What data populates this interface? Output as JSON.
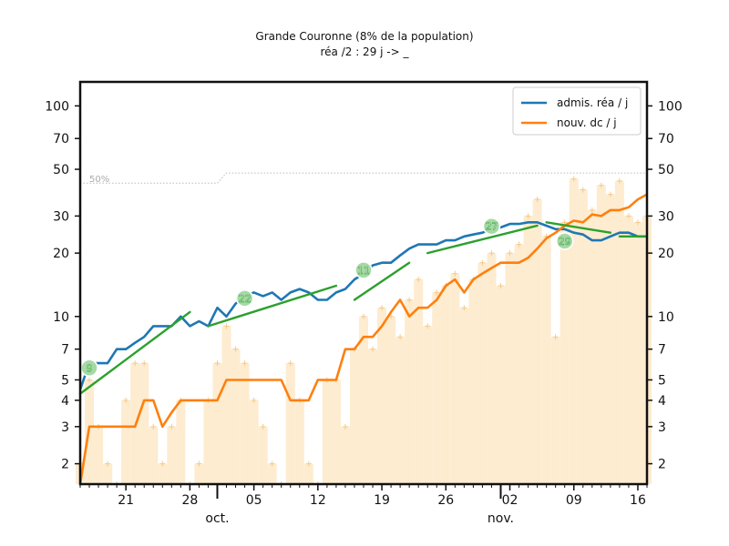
{
  "chart_data": {
    "type": "line",
    "title": "Grande Couronne (8% de la population)",
    "subtitle": "réa /2 : 29 j -> _",
    "y_scale": "log",
    "ylim": [
      1.6,
      130
    ],
    "y_ticks": [
      {
        "value": 2,
        "label": "2"
      },
      {
        "value": 3,
        "label": "3"
      },
      {
        "value": 4,
        "label": "4"
      },
      {
        "value": 5,
        "label": "5"
      },
      {
        "value": 7,
        "label": "7"
      },
      {
        "value": 10,
        "label": "10"
      },
      {
        "value": 20,
        "label": "20"
      },
      {
        "value": 30,
        "label": "30"
      },
      {
        "value": 50,
        "label": "50"
      },
      {
        "value": 70,
        "label": "70"
      },
      {
        "value": 100,
        "label": "100"
      }
    ],
    "x_range": [
      "2020-09-16",
      "2020-11-17"
    ],
    "x_ticks": [
      {
        "date": "2020-09-21",
        "label": "21"
      },
      {
        "date": "2020-09-28",
        "label": "28"
      },
      {
        "date": "2020-10-05",
        "label": "05"
      },
      {
        "date": "2020-10-12",
        "label": "12"
      },
      {
        "date": "2020-10-19",
        "label": "19"
      },
      {
        "date": "2020-10-26",
        "label": "26"
      },
      {
        "date": "2020-11-02",
        "label": "02"
      },
      {
        "date": "2020-11-09",
        "label": "09"
      },
      {
        "date": "2020-11-16",
        "label": "16"
      }
    ],
    "month_labels": [
      {
        "date": "2020-10-01",
        "label": "oct."
      },
      {
        "date": "2020-11-01",
        "label": "nov."
      }
    ],
    "legend": {
      "position": "top-right"
    },
    "annotation_50": {
      "label": "50%"
    },
    "reference_line": [
      {
        "date": "2020-09-16",
        "value": 43
      },
      {
        "date": "2020-10-01",
        "value": 43
      },
      {
        "date": "2020-10-02",
        "value": 48
      },
      {
        "date": "2020-11-17",
        "value": 48
      }
    ],
    "series": [
      {
        "name": "admis. réa / j",
        "color": "#1f77b4",
        "dates": [
          "2020-09-16",
          "2020-09-17",
          "2020-09-18",
          "2020-09-19",
          "2020-09-20",
          "2020-09-21",
          "2020-09-22",
          "2020-09-23",
          "2020-09-24",
          "2020-09-25",
          "2020-09-26",
          "2020-09-27",
          "2020-09-28",
          "2020-09-29",
          "2020-09-30",
          "2020-10-01",
          "2020-10-02",
          "2020-10-03",
          "2020-10-04",
          "2020-10-05",
          "2020-10-06",
          "2020-10-07",
          "2020-10-08",
          "2020-10-09",
          "2020-10-10",
          "2020-10-11",
          "2020-10-12",
          "2020-10-13",
          "2020-10-14",
          "2020-10-15",
          "2020-10-16",
          "2020-10-17",
          "2020-10-18",
          "2020-10-19",
          "2020-10-20",
          "2020-10-21",
          "2020-10-22",
          "2020-10-23",
          "2020-10-24",
          "2020-10-25",
          "2020-10-26",
          "2020-10-27",
          "2020-10-28",
          "2020-10-29",
          "2020-10-30",
          "2020-10-31",
          "2020-11-01",
          "2020-11-02",
          "2020-11-03",
          "2020-11-04",
          "2020-11-05",
          "2020-11-06",
          "2020-11-07",
          "2020-11-08",
          "2020-11-09",
          "2020-11-10",
          "2020-11-11",
          "2020-11-12",
          "2020-11-13",
          "2020-11-14",
          "2020-11-15",
          "2020-11-16",
          "2020-11-17"
        ],
        "values": [
          4.5,
          6,
          6,
          6,
          7,
          7,
          7.5,
          8,
          9,
          9,
          9,
          10,
          9,
          9.5,
          9,
          11,
          10,
          11.5,
          12.5,
          13,
          12.5,
          13,
          12,
          13,
          13.5,
          13,
          12,
          12,
          13,
          13.5,
          15,
          16,
          17.5,
          18,
          18,
          19.5,
          21,
          22,
          22,
          22,
          23,
          23,
          24,
          24.5,
          25,
          26,
          26.5,
          27.5,
          27.5,
          28,
          28,
          27,
          26,
          26,
          25,
          24.5,
          23,
          23,
          24,
          25,
          25,
          24,
          24
        ]
      },
      {
        "name": "nouv. dc / j",
        "color": "#ff7f0e",
        "dates": [
          "2020-09-16",
          "2020-09-17",
          "2020-09-18",
          "2020-09-19",
          "2020-09-20",
          "2020-09-21",
          "2020-09-22",
          "2020-09-23",
          "2020-09-24",
          "2020-09-25",
          "2020-09-26",
          "2020-09-27",
          "2020-09-28",
          "2020-09-29",
          "2020-09-30",
          "2020-10-01",
          "2020-10-02",
          "2020-10-03",
          "2020-10-04",
          "2020-10-05",
          "2020-10-06",
          "2020-10-07",
          "2020-10-08",
          "2020-10-09",
          "2020-10-10",
          "2020-10-11",
          "2020-10-12",
          "2020-10-13",
          "2020-10-14",
          "2020-10-15",
          "2020-10-16",
          "2020-10-17",
          "2020-10-18",
          "2020-10-19",
          "2020-10-20",
          "2020-10-21",
          "2020-10-22",
          "2020-10-23",
          "2020-10-24",
          "2020-10-25",
          "2020-10-26",
          "2020-10-27",
          "2020-10-28",
          "2020-10-29",
          "2020-10-30",
          "2020-10-31",
          "2020-11-01",
          "2020-11-02",
          "2020-11-03",
          "2020-11-04",
          "2020-11-05",
          "2020-11-06",
          "2020-11-07",
          "2020-11-08",
          "2020-11-09",
          "2020-11-10",
          "2020-11-11",
          "2020-11-12",
          "2020-11-13",
          "2020-11-14",
          "2020-11-15",
          "2020-11-16",
          "2020-11-17"
        ],
        "values": [
          1.5,
          3,
          3,
          3,
          3,
          3,
          3,
          4,
          4,
          3,
          3.5,
          4,
          4,
          4,
          4,
          4,
          5,
          5,
          5,
          5,
          5,
          5,
          5,
          4,
          4,
          4,
          5,
          5,
          5,
          7,
          7,
          8,
          8,
          9,
          10.5,
          12,
          10,
          11,
          11,
          12,
          14,
          15,
          13,
          15,
          16,
          17,
          18,
          18,
          18,
          19,
          21,
          23.5,
          25,
          27,
          28.5,
          28,
          30.5,
          30,
          32,
          32,
          33,
          36,
          38
        ]
      }
    ],
    "daily_bars": {
      "color": "#fde9c8",
      "values": [
        2,
        5,
        3,
        2,
        1.5,
        4,
        6,
        6,
        3,
        2,
        3,
        4,
        1,
        2,
        4,
        6,
        9,
        7,
        6,
        4,
        3,
        2,
        1,
        6,
        4,
        2,
        1,
        5,
        5,
        3,
        7,
        10,
        7,
        11,
        10,
        8,
        12,
        15,
        9,
        13,
        14,
        16,
        11,
        15,
        18,
        20,
        14,
        20,
        22,
        30,
        36,
        24,
        8,
        28,
        45,
        40,
        32,
        42,
        38,
        44,
        30,
        28,
        30
      ]
    },
    "fit_lines": {
      "color": "#2ca02c",
      "segments": [
        {
          "start": "2020-09-16",
          "end": "2020-09-28",
          "from": 4.3,
          "to": 10.5
        },
        {
          "start": "2020-09-30",
          "end": "2020-10-14",
          "from": 9,
          "to": 14
        },
        {
          "start": "2020-10-16",
          "end": "2020-10-22",
          "from": 12,
          "to": 18
        },
        {
          "start": "2020-10-24",
          "end": "2020-11-05",
          "from": 20,
          "to": 27
        },
        {
          "start": "2020-11-06",
          "end": "2020-11-13",
          "from": 28,
          "to": 25
        },
        {
          "start": "2020-11-14",
          "end": "2020-11-17",
          "from": 24,
          "to": 24
        }
      ]
    },
    "badges": [
      {
        "label": "9",
        "date": "2020-09-17",
        "value": 5.7
      },
      {
        "label": "22",
        "date": "2020-10-04",
        "value": 12.2
      },
      {
        "label": "11",
        "date": "2020-10-17",
        "value": 16.6
      },
      {
        "label": "27",
        "date": "2020-10-31",
        "value": 26.8
      },
      {
        "label": "29",
        "date": "2020-11-08",
        "value": 22.8
      }
    ]
  }
}
